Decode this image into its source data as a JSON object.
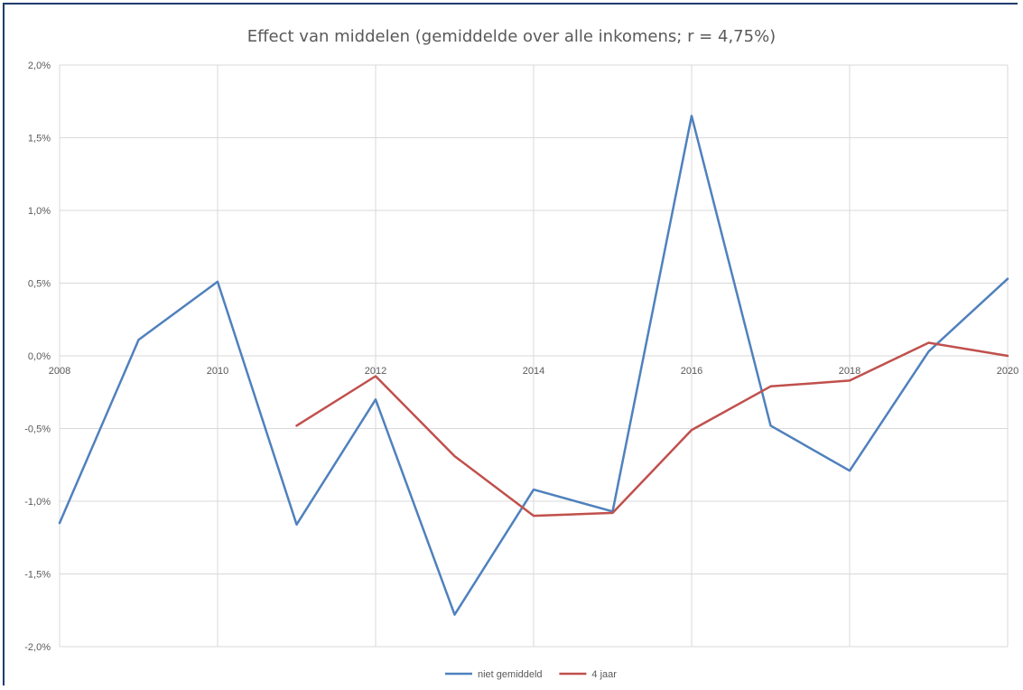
{
  "chart_data": {
    "type": "line",
    "title": "Effect van middelen (gemiddelde over alle inkomens; r = 4,75%)",
    "xlabel": "",
    "ylabel": "",
    "x": [
      2008,
      2009,
      2010,
      2011,
      2012,
      2013,
      2014,
      2015,
      2016,
      2017,
      2018,
      2019,
      2020
    ],
    "xlim": [
      2008,
      2020
    ],
    "ylim": [
      -0.02,
      0.02
    ],
    "x_tick_labels": [
      "2008",
      "2010",
      "2012",
      "2014",
      "2016",
      "2018",
      "2020"
    ],
    "y_ticks": [
      0.02,
      0.015,
      0.01,
      0.005,
      0.0,
      -0.005,
      -0.01,
      -0.015,
      -0.02
    ],
    "y_tick_labels": [
      "2,0%",
      "1,5%",
      "1,0%",
      "0,5%",
      "0,0%",
      "-0,5%",
      "-1,0%",
      "-1,5%",
      "-2,0%"
    ],
    "grid": true,
    "legend_position": "bottom",
    "series": [
      {
        "name": "niet gemiddeld",
        "color": "#4f81bd",
        "values": [
          -0.0115,
          0.0011,
          0.0051,
          -0.0116,
          -0.003,
          -0.0178,
          -0.0092,
          -0.0107,
          0.0165,
          -0.0048,
          -0.0079,
          0.0003,
          0.0053
        ]
      },
      {
        "name": "4 jaar",
        "color": "#c0504d",
        "values": [
          null,
          null,
          null,
          -0.0048,
          -0.0014,
          -0.0069,
          -0.011,
          -0.0108,
          -0.0051,
          -0.0021,
          -0.0017,
          0.0009,
          0.0
        ]
      }
    ]
  }
}
